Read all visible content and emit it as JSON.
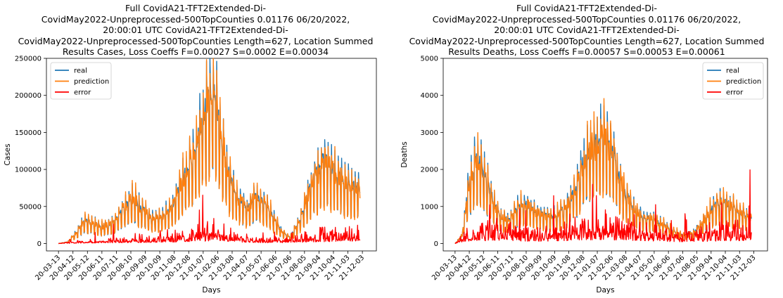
{
  "colors": {
    "real": "#1f77b4",
    "prediction": "#ff7f0e",
    "error": "#ff0000"
  },
  "chart_data": [
    {
      "type": "line",
      "title_lines": [
        "Full CovidA21-TFT2Extended-Di-",
        "CovidMay2022-Unpreprocessed-500TopCounties 0.01176 06/20/2022,",
        "20:00:01 UTC CovidA21-TFT2Extended-Di-",
        "CovidMay2022-Unpreprocessed-500TopCounties Length=627, Location Summed",
        "Results Cases, Loss Coeffs F=0.00027 S=0.0002 E=0.00034"
      ],
      "xlabel": "Days",
      "ylabel": "Cases",
      "ylim": [
        -10000,
        250000
      ],
      "yticks": [
        0,
        50000,
        100000,
        150000,
        200000,
        250000
      ],
      "ytick_labels": [
        "0",
        "50000",
        "100000",
        "150000",
        "200000",
        "250000"
      ],
      "xlim": [
        "2020-02-17",
        "2022-01-01"
      ],
      "xtick_labels": [
        "20-03-13",
        "20-04-12",
        "20-05-12",
        "20-06-11",
        "20-07-11",
        "20-08-10",
        "20-09-09",
        "20-10-09",
        "20-11-08",
        "20-12-08",
        "21-01-07",
        "21-02-06",
        "21-03-08",
        "21-04-07",
        "21-05-07",
        "21-06-06",
        "21-07-06",
        "21-08-05",
        "21-09-04",
        "21-10-04",
        "21-11-03",
        "21-12-03"
      ],
      "legend": {
        "entries": [
          "real",
          "prediction",
          "error"
        ],
        "position": "upper-left"
      },
      "series_anchors": {
        "real": [
          [
            "2020-03-13",
            0
          ],
          [
            "2020-04-01",
            2000
          ],
          [
            "2020-04-20",
            15000
          ],
          [
            "2020-05-05",
            30000
          ],
          [
            "2020-05-20",
            28000
          ],
          [
            "2020-06-10",
            22000
          ],
          [
            "2020-07-05",
            27000
          ],
          [
            "2020-07-25",
            45000
          ],
          [
            "2020-08-12",
            60000
          ],
          [
            "2020-09-01",
            46000
          ],
          [
            "2020-09-25",
            32000
          ],
          [
            "2020-10-15",
            38000
          ],
          [
            "2020-11-05",
            48000
          ],
          [
            "2020-11-20",
            75000
          ],
          [
            "2020-12-08",
            100000
          ],
          [
            "2020-12-25",
            130000
          ],
          [
            "2021-01-08",
            165000
          ],
          [
            "2021-01-22",
            200000
          ],
          [
            "2021-02-04",
            180000
          ],
          [
            "2021-02-15",
            130000
          ],
          [
            "2021-03-01",
            90000
          ],
          [
            "2021-03-20",
            58000
          ],
          [
            "2021-04-10",
            45000
          ],
          [
            "2021-04-25",
            62000
          ],
          [
            "2021-05-12",
            55000
          ],
          [
            "2021-06-01",
            35000
          ],
          [
            "2021-06-20",
            15000
          ],
          [
            "2021-07-06",
            8000
          ],
          [
            "2021-07-25",
            30000
          ],
          [
            "2021-08-10",
            60000
          ],
          [
            "2021-08-28",
            90000
          ],
          [
            "2021-09-15",
            110000
          ],
          [
            "2021-10-05",
            95000
          ],
          [
            "2021-10-25",
            80000
          ],
          [
            "2021-11-12",
            75000
          ],
          [
            "2021-11-28",
            70000
          ]
        ],
        "prediction_ref": "real",
        "error": [
          [
            "2020-03-13",
            0
          ],
          [
            "2020-05-01",
            2000
          ],
          [
            "2020-07-01",
            3000
          ],
          [
            "2020-09-01",
            4000
          ],
          [
            "2020-11-01",
            6000
          ],
          [
            "2021-01-01",
            10000
          ],
          [
            "2021-02-15",
            12000
          ],
          [
            "2021-04-01",
            5000
          ],
          [
            "2021-07-01",
            3000
          ],
          [
            "2021-09-01",
            8000
          ],
          [
            "2021-11-28",
            10000
          ]
        ]
      }
    },
    {
      "type": "line",
      "title_lines": [
        "Full CovidA21-TFT2Extended-Di-",
        "CovidMay2022-Unpreprocessed-500TopCounties 0.01176 06/20/2022,",
        "20:00:01 UTC CovidA21-TFT2Extended-Di-",
        "CovidMay2022-Unpreprocessed-500TopCounties Length=627, Location Summed",
        "Results Deaths, Loss Coeffs F=0.00057 S=0.00053 E=0.00061"
      ],
      "xlabel": "Days",
      "ylabel": "Deaths",
      "ylim": [
        -200,
        5000
      ],
      "yticks": [
        0,
        1000,
        2000,
        3000,
        4000,
        5000
      ],
      "ytick_labels": [
        "0",
        "1000",
        "2000",
        "3000",
        "4000",
        "5000"
      ],
      "xlim": [
        "2020-02-17",
        "2022-01-01"
      ],
      "xtick_labels": [
        "20-03-13",
        "20-04-12",
        "20-05-12",
        "20-06-11",
        "20-07-11",
        "20-08-10",
        "20-09-09",
        "20-10-09",
        "20-11-08",
        "20-12-08",
        "21-01-07",
        "21-02-06",
        "21-03-08",
        "21-04-07",
        "21-05-07",
        "21-06-06",
        "21-07-06",
        "21-08-05",
        "21-09-04",
        "21-10-04",
        "21-11-03",
        "21-12-03"
      ],
      "legend": {
        "entries": [
          "real",
          "prediction",
          "error"
        ],
        "position": "upper-right"
      },
      "series_anchors": {
        "real": [
          [
            "2020-03-13",
            0
          ],
          [
            "2020-03-28",
            200
          ],
          [
            "2020-04-10",
            1500
          ],
          [
            "2020-04-25",
            2200
          ],
          [
            "2020-05-10",
            2000
          ],
          [
            "2020-05-25",
            1400
          ],
          [
            "2020-06-15",
            700
          ],
          [
            "2020-07-05",
            600
          ],
          [
            "2020-07-25",
            1000
          ],
          [
            "2020-08-12",
            1000
          ],
          [
            "2020-09-01",
            800
          ],
          [
            "2020-09-25",
            700
          ],
          [
            "2020-10-15",
            750
          ],
          [
            "2020-11-05",
            1000
          ],
          [
            "2020-11-25",
            1500
          ],
          [
            "2020-12-10",
            2200
          ],
          [
            "2021-01-01",
            2600
          ],
          [
            "2021-01-20",
            2800
          ],
          [
            "2021-02-05",
            2500
          ],
          [
            "2021-02-20",
            1800
          ],
          [
            "2021-03-08",
            1300
          ],
          [
            "2021-03-25",
            900
          ],
          [
            "2021-04-10",
            700
          ],
          [
            "2021-05-01",
            650
          ],
          [
            "2021-05-25",
            500
          ],
          [
            "2021-06-15",
            350
          ],
          [
            "2021-07-06",
            200
          ],
          [
            "2021-07-25",
            250
          ],
          [
            "2021-08-15",
            500
          ],
          [
            "2021-09-05",
            900
          ],
          [
            "2021-09-25",
            1100
          ],
          [
            "2021-10-15",
            1000
          ],
          [
            "2021-11-05",
            800
          ],
          [
            "2021-11-28",
            700
          ]
        ],
        "prediction_ref": "real",
        "error": [
          [
            "2020-03-13",
            0
          ],
          [
            "2020-04-15",
            250
          ],
          [
            "2020-06-01",
            250
          ],
          [
            "2020-08-01",
            200
          ],
          [
            "2020-10-01",
            200
          ],
          [
            "2020-12-01",
            300
          ],
          [
            "2021-01-15",
            350
          ],
          [
            "2021-03-01",
            300
          ],
          [
            "2021-05-01",
            220
          ],
          [
            "2021-07-01",
            150
          ],
          [
            "2021-09-01",
            200
          ],
          [
            "2021-11-28",
            250
          ]
        ]
      }
    }
  ]
}
